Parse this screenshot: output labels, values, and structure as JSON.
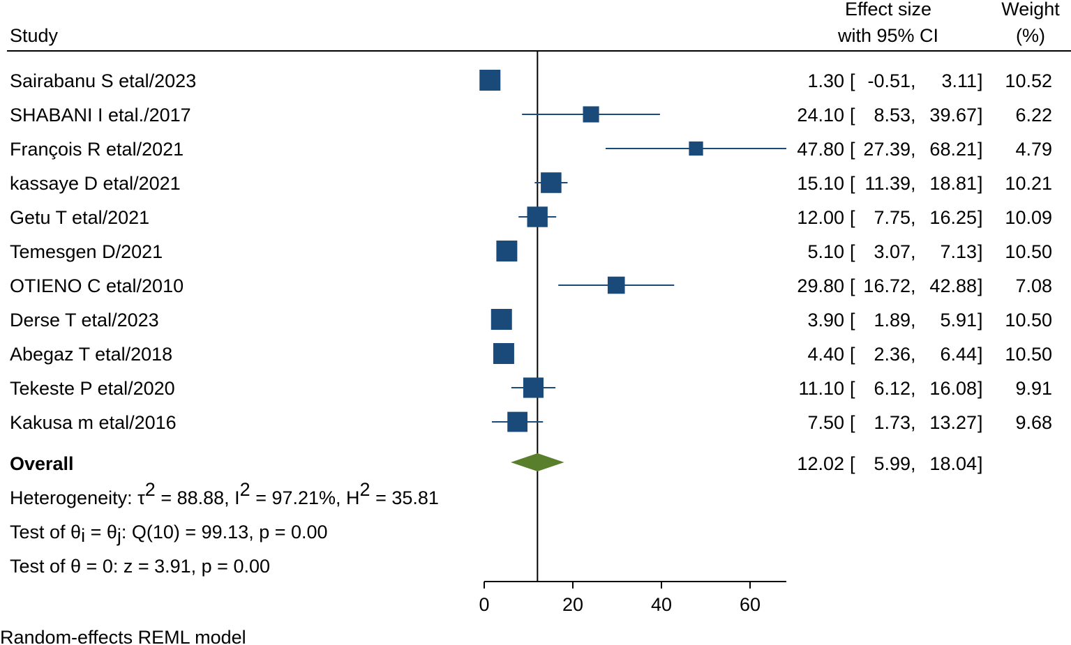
{
  "header": {
    "study": "Study",
    "effect_line1": "Effect size",
    "effect_line2": "with 95% CI",
    "weight_line1": "Weight",
    "weight_line2": "(%)"
  },
  "overall": {
    "label": "Overall",
    "effect": 12.02,
    "lower": 5.99,
    "upper": 18.04,
    "effect_text": "12.02",
    "lower_text": "5.99",
    "upper_text": "18.04"
  },
  "heterogeneity": {
    "prefix": "Heterogeneity: τ",
    "tau_sup": "2",
    "tau_value": " = 88.88, I",
    "i_sup": "2",
    "i_value": " = 97.21%, H",
    "h_sup": "2",
    "h_value": " = 35.81"
  },
  "test_equal": {
    "prefix": "Test of θ",
    "sub_i": "i",
    "middle": " = θ",
    "sub_j": "j",
    "suffix": ": Q(10) = 99.13, p = 0.00"
  },
  "test_zero": "Test of θ = 0: z = 3.91, p = 0.00",
  "footnote": "Random-effects REML model",
  "colors": {
    "marker": "#1a4a7a",
    "diamond": "#5a7f2c",
    "line": "#000000"
  },
  "chart_data": {
    "type": "forest",
    "xlim": [
      0,
      68
    ],
    "xticks": [
      0,
      20,
      40,
      60
    ],
    "xtick_labels": [
      "0",
      "20",
      "40",
      "60"
    ],
    "reference_value": 12.02,
    "studies": [
      {
        "name": "Sairabanu S etal/2023",
        "effect": 1.3,
        "lower": -0.51,
        "upper": 3.11,
        "weight": 10.52,
        "effect_text": "1.30",
        "lower_text": "-0.51",
        "upper_text": "3.11",
        "weight_text": "10.52"
      },
      {
        "name": "SHABANI I etal./2017",
        "effect": 24.1,
        "lower": 8.53,
        "upper": 39.67,
        "weight": 6.22,
        "effect_text": "24.10",
        "lower_text": "8.53",
        "upper_text": "39.67",
        "weight_text": "6.22"
      },
      {
        "name": "François R etal/2021",
        "effect": 47.8,
        "lower": 27.39,
        "upper": 68.21,
        "weight": 4.79,
        "effect_text": "47.80",
        "lower_text": "27.39",
        "upper_text": "68.21",
        "weight_text": "4.79"
      },
      {
        "name": "kassaye D etal/2021",
        "effect": 15.1,
        "lower": 11.39,
        "upper": 18.81,
        "weight": 10.21,
        "effect_text": "15.10",
        "lower_text": "11.39",
        "upper_text": "18.81",
        "weight_text": "10.21"
      },
      {
        "name": "Getu T etal/2021",
        "effect": 12.0,
        "lower": 7.75,
        "upper": 16.25,
        "weight": 10.09,
        "effect_text": "12.00",
        "lower_text": "7.75",
        "upper_text": "16.25",
        "weight_text": "10.09"
      },
      {
        "name": "Temesgen D/2021",
        "effect": 5.1,
        "lower": 3.07,
        "upper": 7.13,
        "weight": 10.5,
        "effect_text": "5.10",
        "lower_text": "3.07",
        "upper_text": "7.13",
        "weight_text": "10.50"
      },
      {
        "name": "OTIENO C etal/2010",
        "effect": 29.8,
        "lower": 16.72,
        "upper": 42.88,
        "weight": 7.08,
        "effect_text": "29.80",
        "lower_text": "16.72",
        "upper_text": "42.88",
        "weight_text": "7.08"
      },
      {
        "name": "Derse T etal/2023",
        "effect": 3.9,
        "lower": 1.89,
        "upper": 5.91,
        "weight": 10.5,
        "effect_text": "3.90",
        "lower_text": "1.89",
        "upper_text": "5.91",
        "weight_text": "10.50"
      },
      {
        "name": "Abegaz T etal/2018",
        "effect": 4.4,
        "lower": 2.36,
        "upper": 6.44,
        "weight": 10.5,
        "effect_text": "4.40",
        "lower_text": "2.36",
        "upper_text": "6.44",
        "weight_text": "10.50"
      },
      {
        "name": "Tekeste P etal/2020",
        "effect": 11.1,
        "lower": 6.12,
        "upper": 16.08,
        "weight": 9.91,
        "effect_text": "11.10",
        "lower_text": "6.12",
        "upper_text": "16.08",
        "weight_text": "9.91"
      },
      {
        "name": "Kakusa m etal/2016",
        "effect": 7.5,
        "lower": 1.73,
        "upper": 13.27,
        "weight": 9.68,
        "effect_text": "7.50",
        "lower_text": "1.73",
        "upper_text": "13.27",
        "weight_text": "9.68"
      }
    ]
  }
}
